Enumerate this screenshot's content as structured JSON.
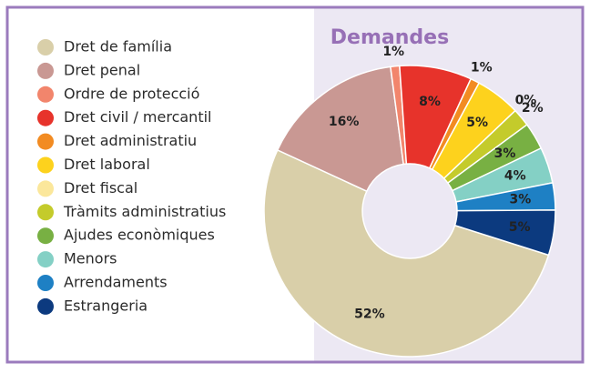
{
  "chart_data": {
    "type": "pie",
    "title": "Demandes",
    "categories": [
      "Dret de família",
      "Dret penal",
      "Ordre de protecció",
      "Dret civil / mercantil",
      "Dret administratiu",
      "Dret laboral",
      "Dret fiscal",
      "Tràmits administratius",
      "Ajudes econòmiques",
      "Menors",
      "Arrendaments",
      "Estrangeria"
    ],
    "values": [
      52,
      16,
      1,
      8,
      1,
      5,
      0,
      2,
      3,
      4,
      3,
      5
    ],
    "value_labels": [
      "52%",
      "16%",
      "1%",
      "8%",
      "1%",
      "5%",
      "0%",
      "2%",
      "3%",
      "4%",
      "3%",
      "5%"
    ],
    "colors": [
      "#d9cfa9",
      "#c99893",
      "#f2856c",
      "#e7332b",
      "#f28b22",
      "#fdd21d",
      "#fbe79b",
      "#c4cb2b",
      "#78b043",
      "#84d0c5",
      "#1e80c4",
      "#0c3a7f"
    ],
    "legend": "left"
  }
}
